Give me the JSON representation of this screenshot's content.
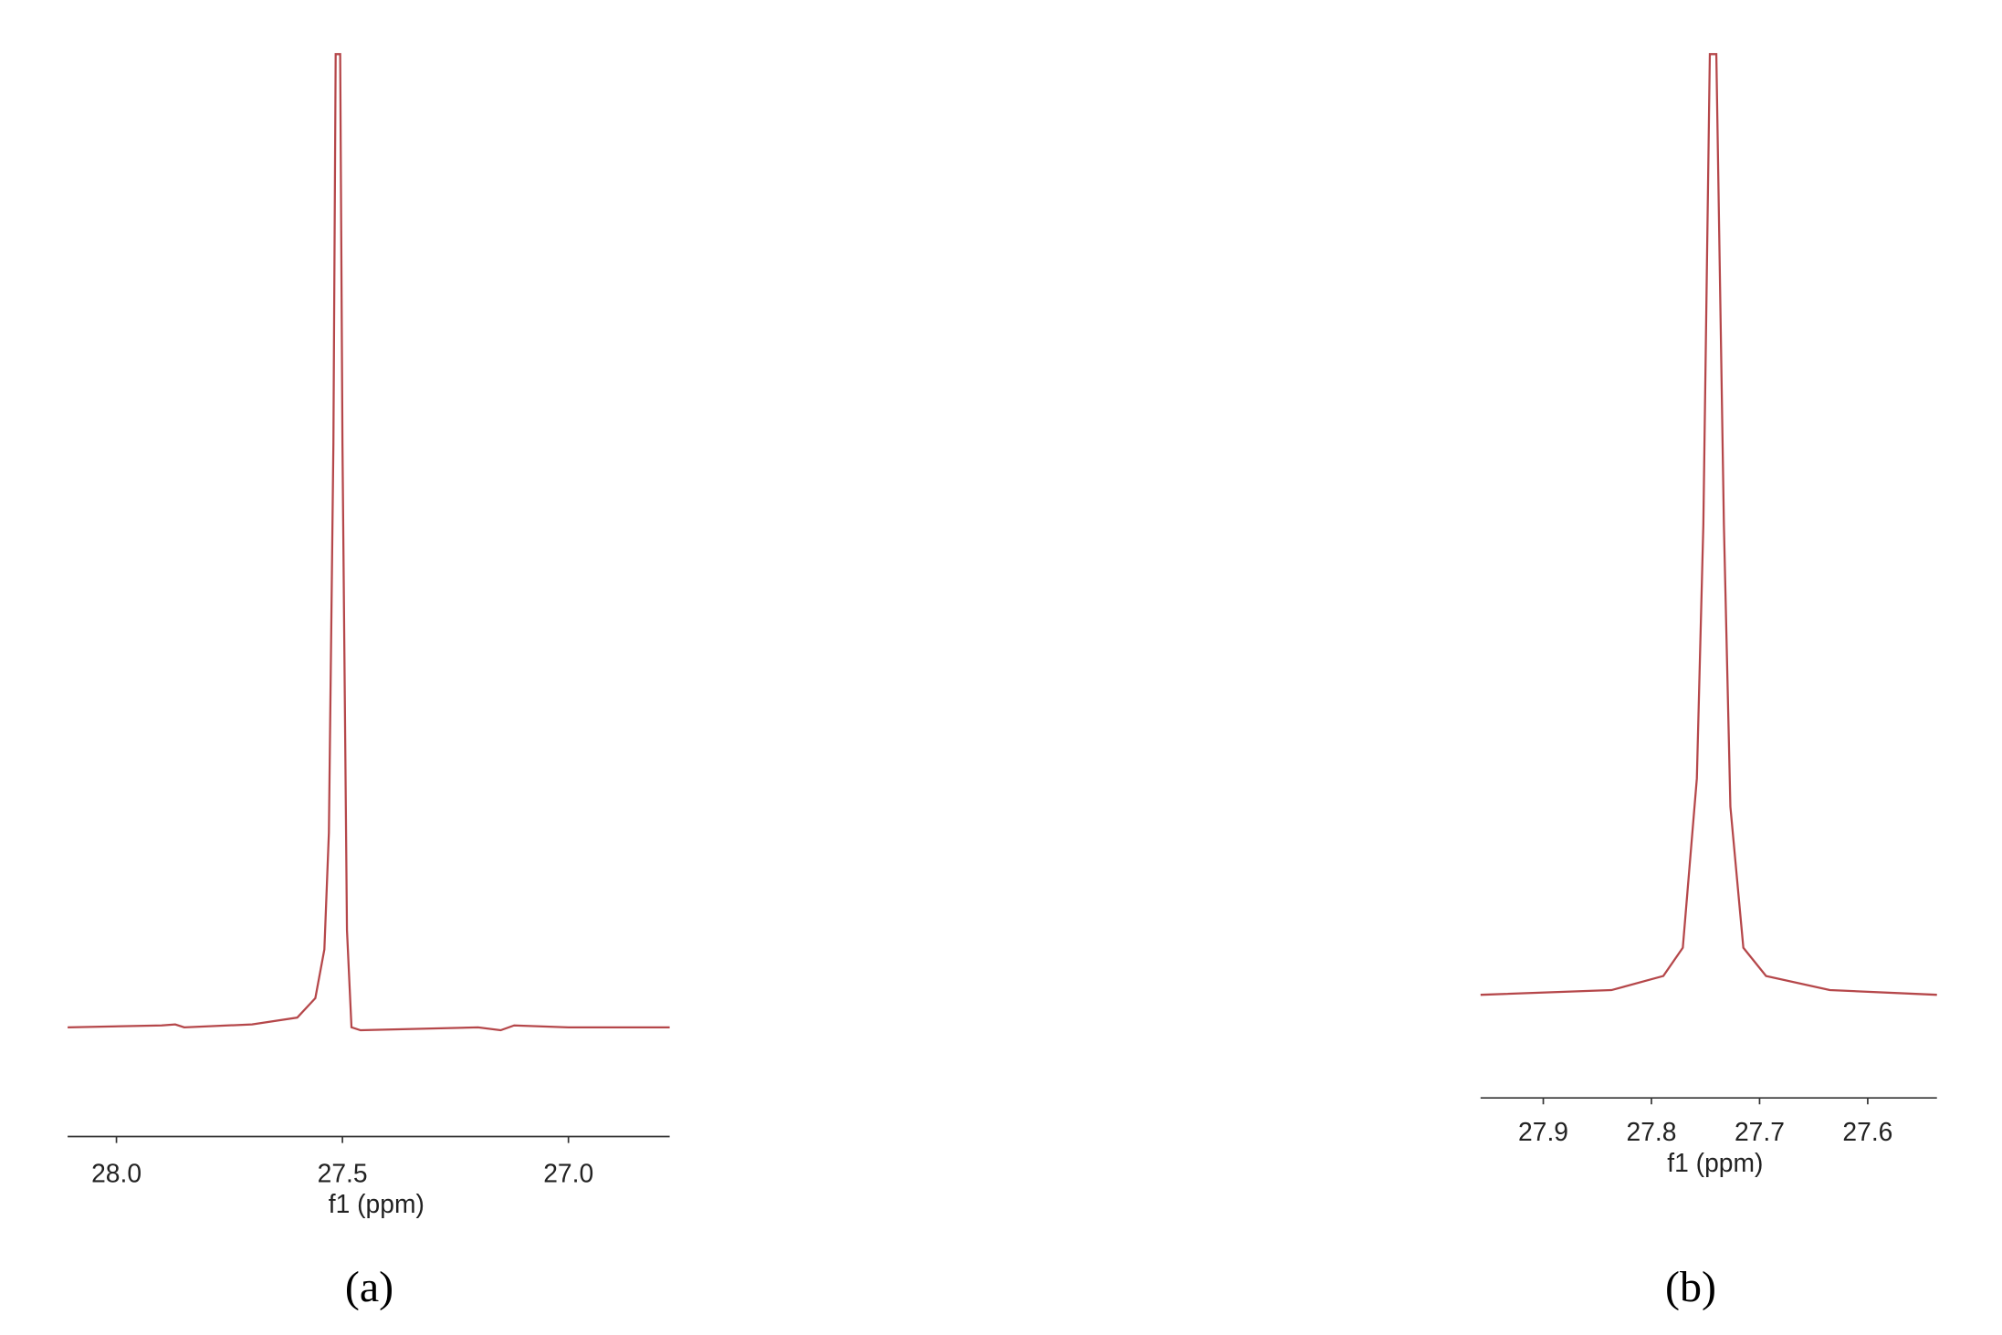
{
  "chart_data": [
    {
      "type": "line",
      "caption": "(a)",
      "x_label": "f1 (ppm)",
      "color": "#b5474a",
      "xlim": [
        28.108,
        26.776
      ],
      "ylim": [
        -5,
        100
      ],
      "xticks": [
        {
          "value": 28,
          "label": "28.0"
        },
        27.5,
        {
          "value": 27,
          "label": "27.0"
        }
      ],
      "x": [
        28.108,
        27.9,
        27.87,
        27.85,
        27.7,
        27.6,
        27.56,
        27.54,
        27.53,
        27.52,
        27.515,
        27.505,
        27.5,
        27.49,
        27.48,
        27.46,
        27.2,
        27.15,
        27.12,
        27.0,
        26.776
      ],
      "series": [
        {
          "values": [
            0,
            0.2,
            0.3,
            0,
            0.3,
            1,
            3,
            8,
            20,
            60,
            100,
            100,
            60,
            10,
            0,
            -0.3,
            0,
            -0.3,
            0.2,
            0,
            0
          ]
        }
      ]
    },
    {
      "type": "line",
      "caption": "(b)",
      "x_label": "f1 (ppm)",
      "color": "#b5474a",
      "xlim": [
        27.958,
        27.536
      ],
      "ylim": [
        -5,
        100
      ],
      "xticks": [
        27.9,
        27.8,
        27.7,
        27.6
      ],
      "x": [
        27.958,
        27.837,
        27.789,
        27.771,
        27.758,
        27.752,
        27.746,
        27.74,
        27.733,
        27.727,
        27.715,
        27.694,
        27.635,
        27.536
      ],
      "series": [
        {
          "values": [
            0,
            0.5,
            2,
            5,
            23,
            50,
            100,
            100,
            50,
            20,
            5,
            2,
            0.5,
            0
          ]
        }
      ]
    }
  ]
}
